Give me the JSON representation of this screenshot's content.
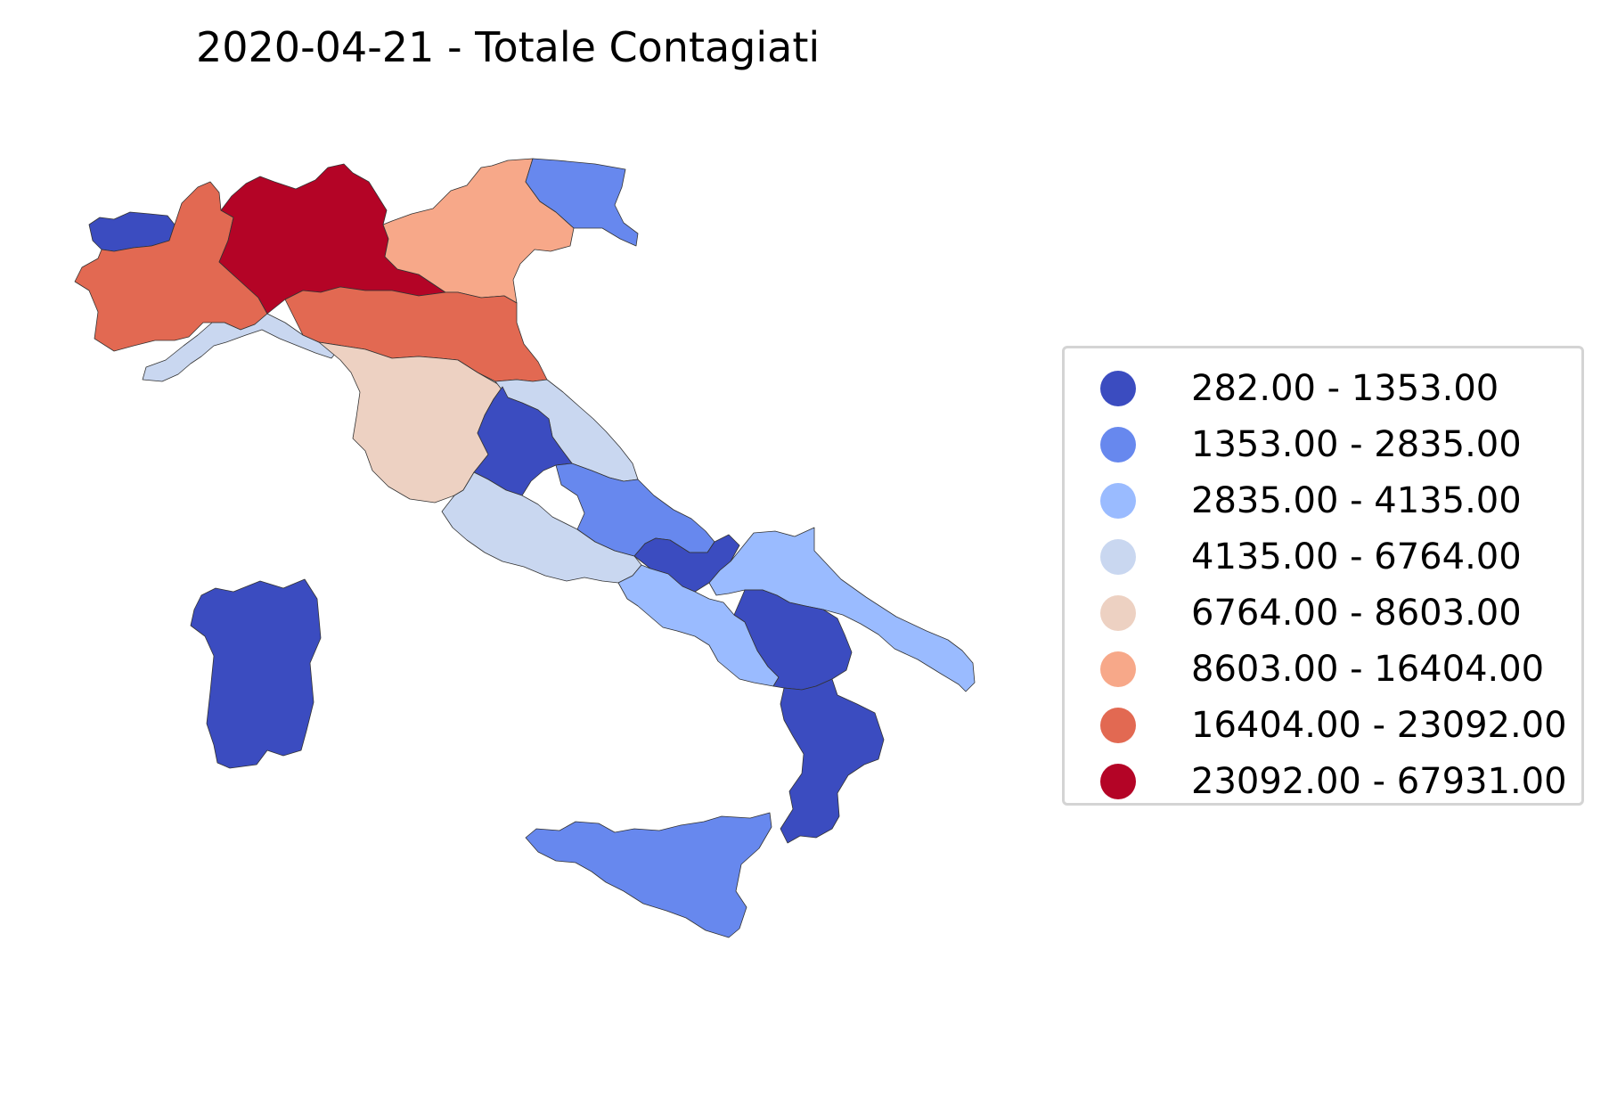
{
  "title": "2020-04-21 - Totale Contagiati",
  "legend": {
    "entries": [
      {
        "label": "282.00 - 1353.00",
        "color": "#3b4cc0"
      },
      {
        "label": "1353.00 - 2835.00",
        "color": "#6788ee"
      },
      {
        "label": "2835.00 - 4135.00",
        "color": "#9abbff"
      },
      {
        "label": "4135.00 - 6764.00",
        "color": "#c9d7f0"
      },
      {
        "label": "6764.00 - 8603.00",
        "color": "#edd1c2"
      },
      {
        "label": "8603.00 - 16404.00",
        "color": "#f7a889"
      },
      {
        "label": "16404.00 - 23092.00",
        "color": "#e26952"
      },
      {
        "label": "23092.00 - 67931.00",
        "color": "#b40426"
      }
    ]
  },
  "regions": [
    {
      "name": "Valle d'Aosta",
      "class": 0
    },
    {
      "name": "Piemonte",
      "class": 6
    },
    {
      "name": "Lombardia",
      "class": 7
    },
    {
      "name": "Trentino-Alto Adige",
      "class": 3
    },
    {
      "name": "Veneto",
      "class": 5
    },
    {
      "name": "Friuli Venezia Giulia",
      "class": 1
    },
    {
      "name": "Liguria",
      "class": 3
    },
    {
      "name": "Emilia-Romagna",
      "class": 6
    },
    {
      "name": "Toscana",
      "class": 4
    },
    {
      "name": "Marche",
      "class": 3
    },
    {
      "name": "Umbria",
      "class": 0
    },
    {
      "name": "Lazio",
      "class": 3
    },
    {
      "name": "Abruzzo",
      "class": 1
    },
    {
      "name": "Molise",
      "class": 0
    },
    {
      "name": "Campania",
      "class": 2
    },
    {
      "name": "Puglia",
      "class": 2
    },
    {
      "name": "Basilicata",
      "class": 0
    },
    {
      "name": "Calabria",
      "class": 0
    },
    {
      "name": "Sicilia",
      "class": 1
    },
    {
      "name": "Sardegna",
      "class": 0
    }
  ]
}
